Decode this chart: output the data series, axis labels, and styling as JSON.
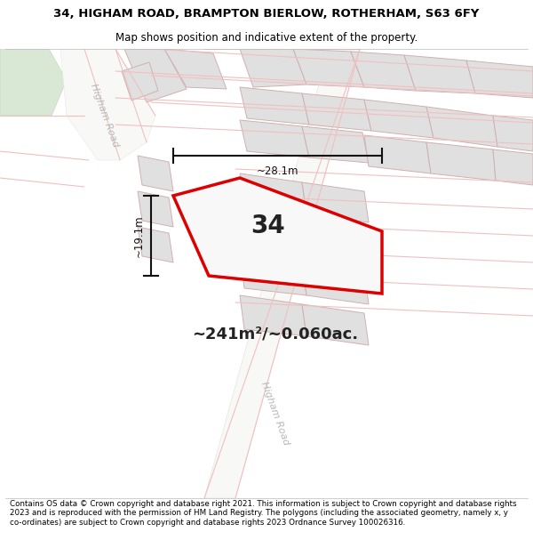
{
  "title_line1": "34, HIGHAM ROAD, BRAMPTON BIERLOW, ROTHERHAM, S63 6FY",
  "title_line2": "Map shows position and indicative extent of the property.",
  "area_text": "~241m²/~0.060ac.",
  "label_number": "34",
  "dim_width": "~28.1m",
  "dim_height": "~19.1m",
  "road_label_upper": "Higham Road",
  "road_label_lower": "Higham Road",
  "footer_text": "Contains OS data © Crown copyright and database right 2021. This information is subject to Crown copyright and database rights 2023 and is reproduced with the permission of HM Land Registry. The polygons (including the associated geometry, namely x, y co-ordinates) are subject to Crown copyright and database rights 2023 Ordnance Survey 100026316.",
  "map_bg": "#ffffff",
  "plot_fill": "#f0f0f0",
  "plot_edge": "#dd0000",
  "building_fill": "#e0e0e0",
  "building_edge": "#d0b0b0",
  "road_line": "#f0c0c0",
  "road_band": "#f5f5f5",
  "green_fill": "#d8e8d4",
  "green_edge": "#c8d8c4",
  "dim_color": "#111111",
  "label_color": "#222222",
  "road_text_color": "#b8b8b8",
  "title_fs": 9.5,
  "subtitle_fs": 8.5,
  "area_fs": 13,
  "number_fs": 20,
  "dim_fs": 8.5,
  "road_fs": 8,
  "footer_fs": 6.3
}
